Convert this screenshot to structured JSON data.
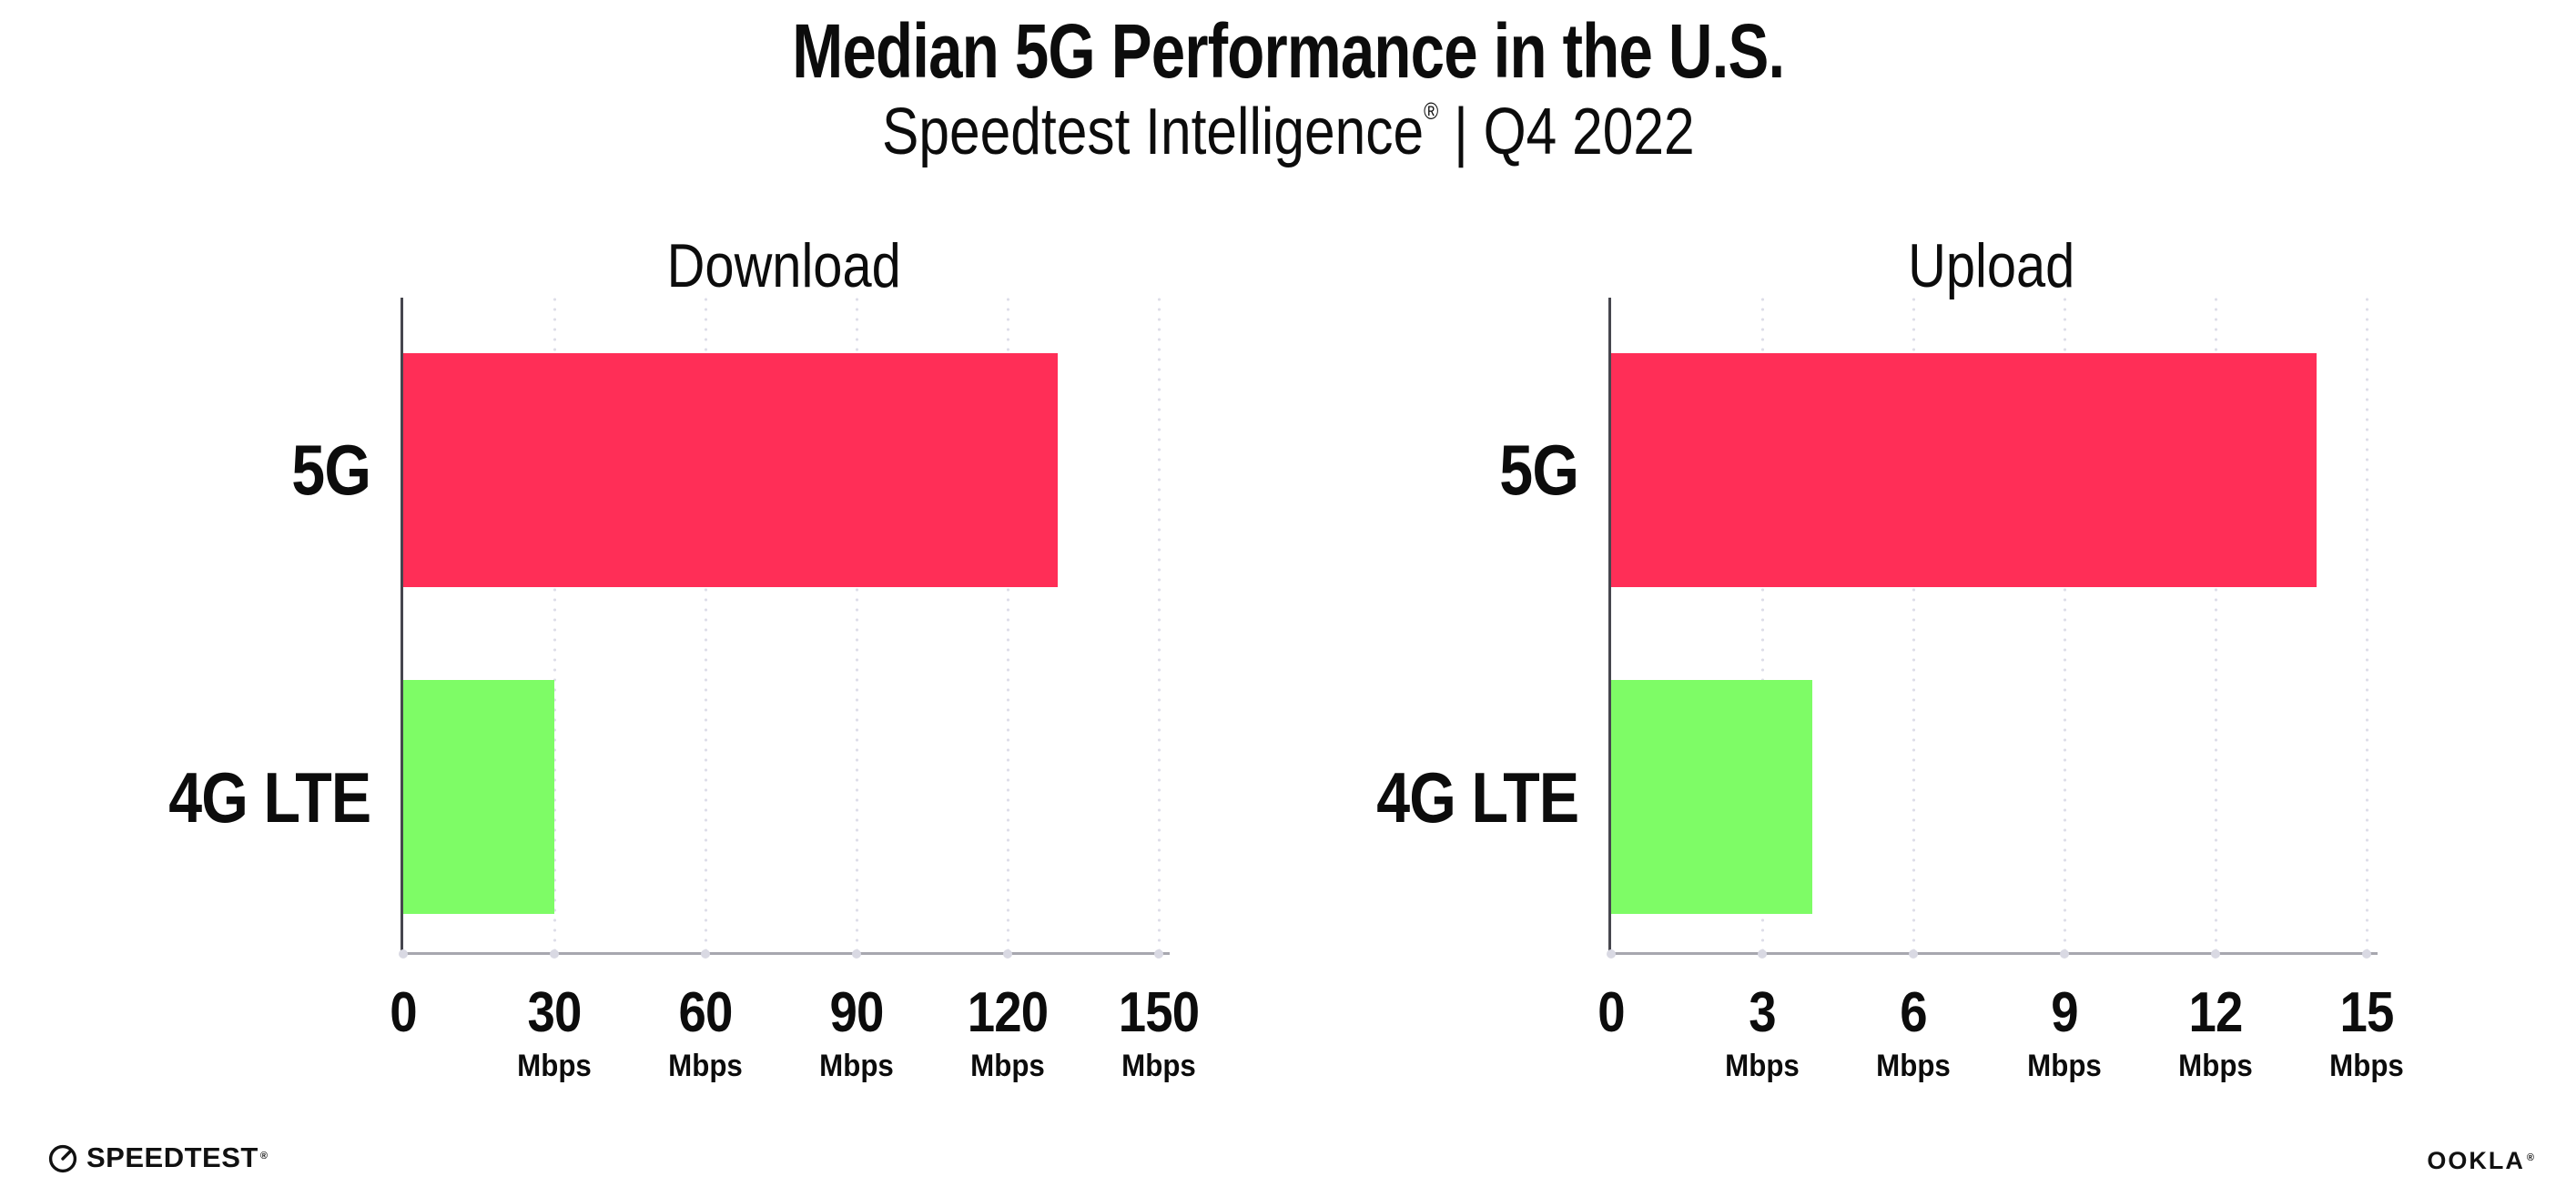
{
  "header": {
    "title": "Median 5G Performance in the U.S.",
    "subtitle": {
      "brand": "Speedtest Intelligence",
      "reg": "®",
      "rest": "| Q4 2022"
    }
  },
  "chart_data": [
    {
      "type": "bar",
      "orientation": "horizontal",
      "title": "Download",
      "categories": [
        "5G",
        "4G LTE"
      ],
      "values": [
        130,
        30
      ],
      "unit": "Mbps",
      "xlim": [
        0,
        150
      ],
      "xticks": [
        0,
        30,
        60,
        90,
        120,
        150
      ],
      "bar_colors": [
        "#ff2e57",
        "#7efc66"
      ],
      "grid": "dotted-vertical",
      "legend": "none"
    },
    {
      "type": "bar",
      "orientation": "horizontal",
      "title": "Upload",
      "categories": [
        "5G",
        "4G LTE"
      ],
      "values": [
        14,
        4
      ],
      "unit": "Mbps",
      "xlim": [
        0,
        15
      ],
      "xticks": [
        0,
        3,
        6,
        9,
        12,
        15
      ],
      "bar_colors": [
        "#ff2e57",
        "#7efc66"
      ],
      "grid": "dotted-vertical",
      "legend": "none"
    }
  ],
  "footer": {
    "speedtest_logo_text": "SPEEDTEST",
    "speedtest_mark": "®",
    "ookla_logo_text": "OOKLA",
    "ookla_mark": "®"
  },
  "colors": {
    "bar_5g": "#ff2e57",
    "bar_4g_lte": "#7efc66",
    "y_axis": "#46464e",
    "x_axis": "#a7a7af",
    "gridline": "#dedee9",
    "text": "#0c0c0c",
    "background": "#ffffff"
  }
}
